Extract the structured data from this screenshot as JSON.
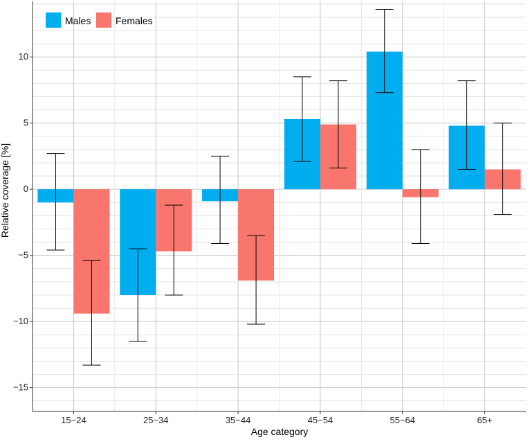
{
  "chart_data": {
    "type": "bar",
    "xlabel": "Age category",
    "ylabel": "Relative coverage [%]",
    "categories": [
      "15−24",
      "25−34",
      "35−44",
      "45−54",
      "55−64",
      "65+"
    ],
    "series": [
      {
        "name": "Males",
        "color": "#00AEEF",
        "values": [
          -1.0,
          -8.0,
          -0.9,
          5.3,
          10.4,
          4.8
        ],
        "error_low": [
          -4.6,
          -11.5,
          -4.1,
          2.1,
          7.3,
          1.5
        ],
        "error_high": [
          2.7,
          -4.5,
          2.5,
          8.5,
          13.6,
          8.2
        ]
      },
      {
        "name": "Females",
        "color": "#F8766D",
        "values": [
          -9.4,
          -4.7,
          -6.9,
          4.9,
          -0.6,
          1.5
        ],
        "error_low": [
          -13.3,
          -8.0,
          -10.2,
          1.6,
          -4.1,
          -1.9
        ],
        "error_high": [
          -5.4,
          -1.2,
          -3.5,
          8.2,
          3.0,
          5.0
        ]
      }
    ],
    "yticks": [
      -15,
      -10,
      -5,
      0,
      5,
      10
    ],
    "ylim": [
      -16.8,
      14.2
    ],
    "grid": true,
    "legend_position": "top-left"
  }
}
